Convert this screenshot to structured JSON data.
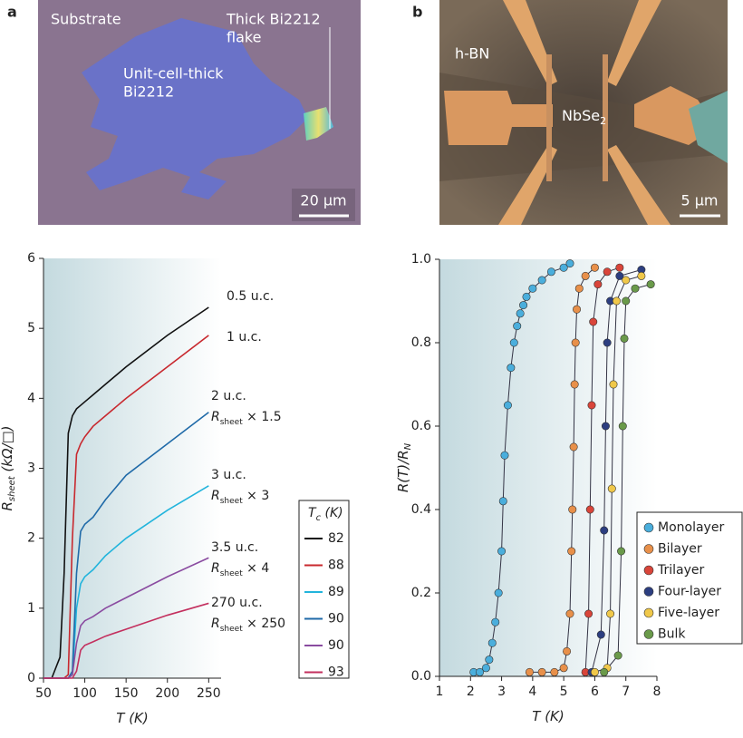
{
  "panels": [
    {
      "letter": "a",
      "texts": {
        "substrate": "Substrate",
        "unit": [
          "Unit-cell-thick",
          "Bi2212"
        ],
        "thick": [
          "Thick Bi2212",
          "flake"
        ]
      },
      "scale_bar": "20 µm"
    },
    {
      "letter": "b",
      "texts": {
        "hbn": "h-BN",
        "nbse": {
          "main": "NbSe",
          "sub": "2"
        }
      },
      "scale_bar": "5 µm"
    }
  ],
  "chart_data": [
    {
      "type": "line",
      "xlabel": {
        "main": "T",
        "rest": " (K)"
      },
      "ylabel": {
        "main": "R",
        "sub": "sheet",
        "rest": " (kΩ/□)"
      },
      "xlim": [
        50,
        265
      ],
      "ylim": [
        0,
        6
      ],
      "xticks": [
        50,
        100,
        150,
        200,
        250
      ],
      "yticks": [
        0,
        1,
        2,
        3,
        4,
        5,
        6
      ],
      "legend_title": {
        "main": "T",
        "sub": "c",
        "rest": " (K)"
      },
      "legend": "lower right",
      "x": [
        50,
        60,
        70,
        75,
        80,
        85,
        90,
        95,
        100,
        110,
        125,
        150,
        200,
        250
      ],
      "series": [
        {
          "name": "82",
          "color": "#111111",
          "values": [
            0,
            0,
            0.3,
            1.5,
            3.5,
            3.75,
            3.85,
            3.9,
            3.95,
            4.05,
            4.2,
            4.45,
            4.9,
            5.3
          ]
        },
        {
          "name": "88",
          "color": "#c8282e",
          "values": [
            0,
            0,
            0,
            0,
            0.05,
            2.0,
            3.2,
            3.35,
            3.45,
            3.6,
            3.75,
            4.0,
            4.45,
            4.9
          ]
        },
        {
          "name": "89",
          "color": "#22b4dc",
          "values": [
            0,
            0,
            0,
            0,
            0,
            0.05,
            1.0,
            1.35,
            1.45,
            1.55,
            1.75,
            2.0,
            2.4,
            2.75
          ]
        },
        {
          "name": "90",
          "color": "#1f6aa8",
          "values": [
            0,
            0,
            0,
            0,
            0,
            0.1,
            1.5,
            2.1,
            2.2,
            2.3,
            2.55,
            2.9,
            3.35,
            3.8
          ]
        },
        {
          "name": "90",
          "color": "#8a4ba0",
          "values": [
            0,
            0,
            0,
            0,
            0,
            0.05,
            0.5,
            0.75,
            0.82,
            0.88,
            1.0,
            1.15,
            1.45,
            1.72
          ]
        },
        {
          "name": "93",
          "color": "#c32f5e",
          "values": [
            0,
            0,
            0,
            0,
            0,
            0,
            0.1,
            0.4,
            0.47,
            0.52,
            0.6,
            0.7,
            0.9,
            1.07
          ]
        }
      ],
      "annotations": [
        {
          "label": "0.5 u.c."
        },
        {
          "label": "1 u.c."
        },
        {
          "label": "2 u.c.",
          "factor": " × 1.5"
        },
        {
          "label": "3 u.c.",
          "factor": " × 3"
        },
        {
          "label": "3.5 u.c.",
          "factor": " × 4"
        },
        {
          "label": "270 u.c.",
          "factor": " × 250"
        }
      ]
    },
    {
      "type": "scatter",
      "xlabel": {
        "main": "T",
        "rest": " (K)"
      },
      "ylabel": {
        "main": "R(T)/R",
        "sub": "N"
      },
      "xlim": [
        1,
        8
      ],
      "ylim": [
        0,
        1
      ],
      "xticks": [
        1,
        2,
        3,
        4,
        5,
        6,
        7,
        8
      ],
      "yticks": [
        {
          "value": 0,
          "label": "0.0"
        },
        {
          "value": 0.2,
          "label": "0.2"
        },
        {
          "value": 0.4,
          "label": "0.4"
        },
        {
          "value": 0.6,
          "label": "0.6"
        },
        {
          "value": 0.8,
          "label": "0.8"
        },
        {
          "value": 1,
          "label": "1.0"
        }
      ],
      "legend": "lower right",
      "series": [
        {
          "name": "Monolayer",
          "color": "#4aaedc",
          "x": [
            2.1,
            2.3,
            2.5,
            2.6,
            2.7,
            2.8,
            2.9,
            3.0,
            3.05,
            3.1,
            3.2,
            3.3,
            3.4,
            3.5,
            3.6,
            3.7,
            3.8,
            4.0,
            4.3,
            4.6,
            5.0,
            5.2
          ],
          "values": [
            0.01,
            0.01,
            0.02,
            0.04,
            0.08,
            0.13,
            0.2,
            0.3,
            0.42,
            0.53,
            0.65,
            0.74,
            0.8,
            0.84,
            0.87,
            0.89,
            0.91,
            0.93,
            0.95,
            0.97,
            0.98,
            0.99
          ]
        },
        {
          "name": "Bilayer",
          "color": "#e8904a",
          "x": [
            3.9,
            4.3,
            4.7,
            5.0,
            5.1,
            5.2,
            5.25,
            5.28,
            5.32,
            5.35,
            5.38,
            5.42,
            5.5,
            5.7,
            6.0
          ],
          "values": [
            0.01,
            0.01,
            0.01,
            0.02,
            0.06,
            0.15,
            0.3,
            0.4,
            0.55,
            0.7,
            0.8,
            0.88,
            0.93,
            0.96,
            0.98
          ]
        },
        {
          "name": "Trilayer",
          "color": "#d9453a",
          "x": [
            5.7,
            5.8,
            5.85,
            5.9,
            5.95,
            6.1,
            6.4,
            6.8
          ],
          "values": [
            0.01,
            0.15,
            0.4,
            0.65,
            0.85,
            0.94,
            0.97,
            0.98
          ]
        },
        {
          "name": "Four-layer",
          "color": "#2c3e80",
          "x": [
            5.9,
            6.2,
            6.3,
            6.35,
            6.4,
            6.5,
            6.8,
            7.5
          ],
          "values": [
            0.01,
            0.1,
            0.35,
            0.6,
            0.8,
            0.9,
            0.96,
            0.975
          ]
        },
        {
          "name": "Five-layer",
          "color": "#f0c84a",
          "x": [
            6.0,
            6.4,
            6.5,
            6.55,
            6.6,
            6.7,
            7.0,
            7.5
          ],
          "values": [
            0.01,
            0.02,
            0.15,
            0.45,
            0.7,
            0.9,
            0.95,
            0.96
          ]
        },
        {
          "name": "Bulk",
          "color": "#6a9a4a",
          "x": [
            6.3,
            6.75,
            6.85,
            6.9,
            6.95,
            7.0,
            7.3,
            7.8
          ],
          "values": [
            0.01,
            0.05,
            0.3,
            0.6,
            0.81,
            0.9,
            0.93,
            0.94
          ]
        }
      ]
    }
  ]
}
